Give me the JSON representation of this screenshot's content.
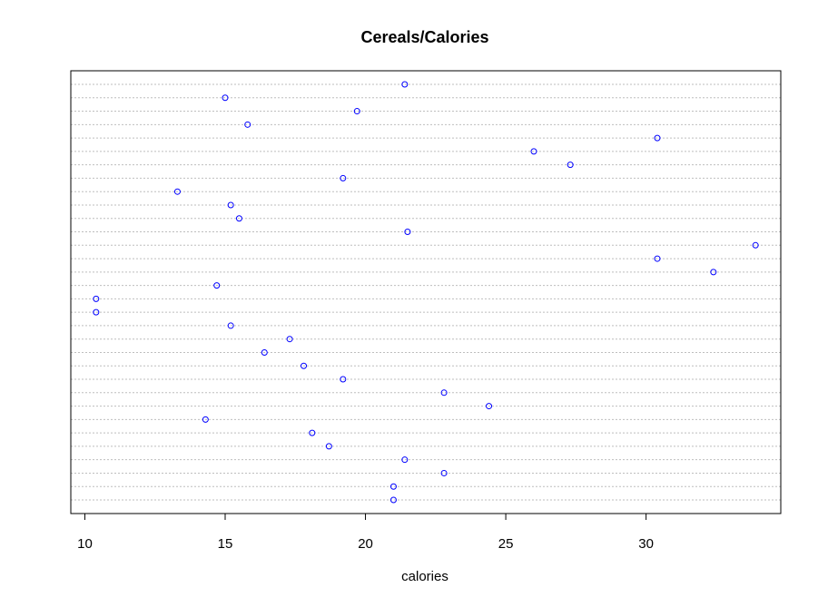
{
  "chart_data": {
    "type": "scatter",
    "subtype": "dotchart",
    "title": "Cereals/Calories",
    "xlabel": "calories",
    "ylabel": "",
    "xlim": [
      9.5,
      34.8
    ],
    "x_ticks": [
      10,
      15,
      20,
      25,
      30
    ],
    "x_tick_labels": [
      "10",
      "15",
      "20",
      "25",
      "30"
    ],
    "grid": "dotted horizontal lines per row",
    "legend": "none",
    "point_color": "#0000ff",
    "grid_color": "#bebebe",
    "values": [
      21.4,
      15.0,
      19.7,
      15.8,
      30.4,
      26.0,
      27.3,
      19.2,
      13.3,
      15.2,
      15.5,
      21.5,
      33.9,
      30.4,
      32.4,
      14.7,
      10.4,
      10.4,
      15.2,
      17.3,
      16.4,
      17.8,
      19.2,
      22.8,
      24.4,
      14.3,
      18.1,
      18.7,
      21.4,
      22.8,
      21.0,
      21.0
    ]
  }
}
